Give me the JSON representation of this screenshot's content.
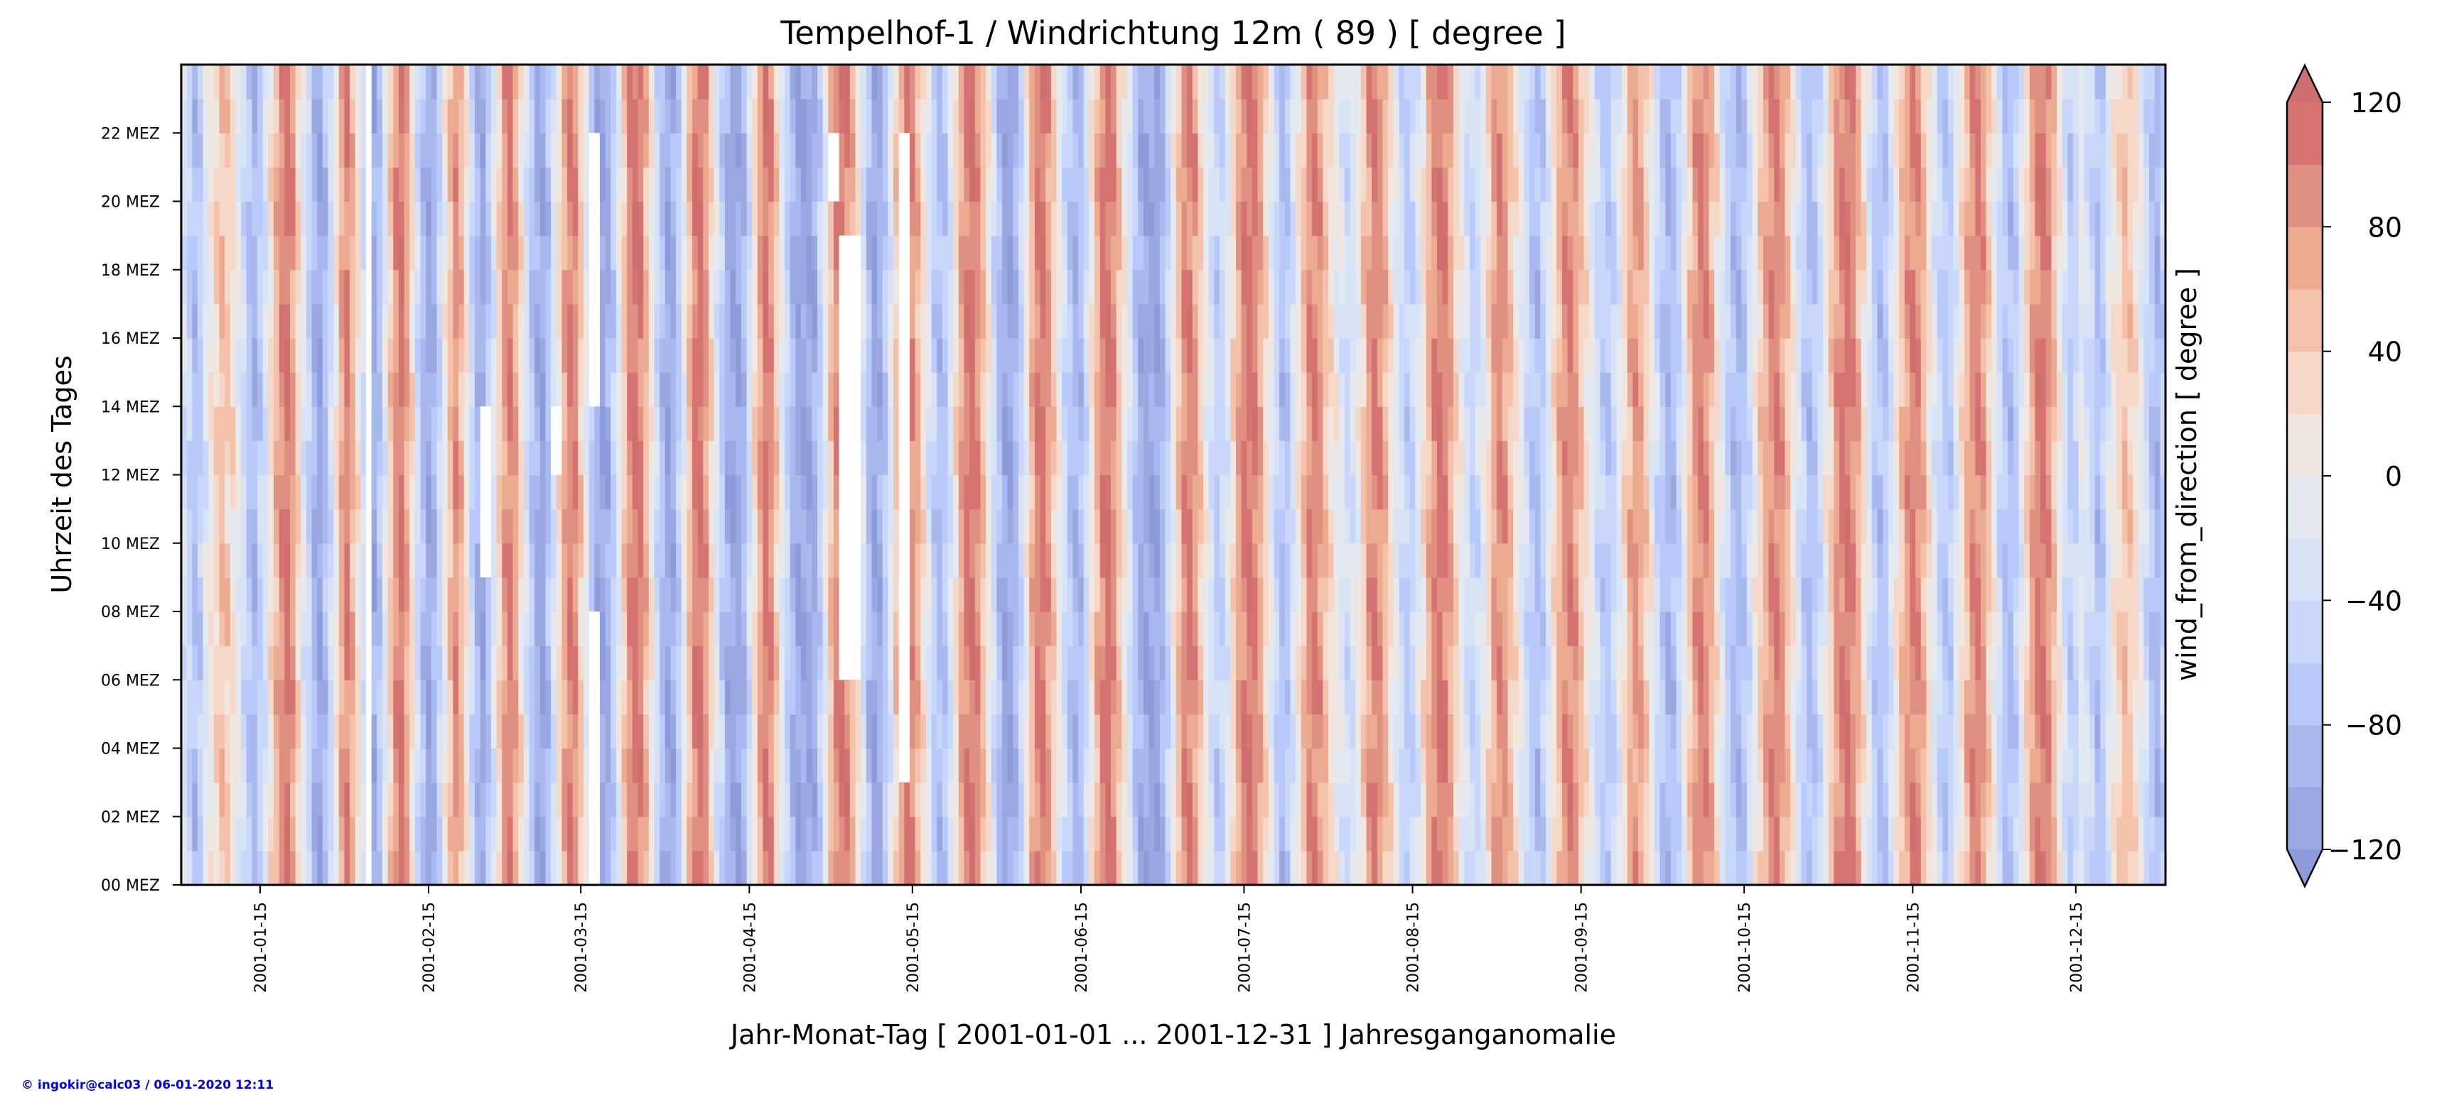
{
  "chart_data": {
    "type": "heatmap",
    "title": "Tempelhof-1 / Windrichtung 12m ( 89 ) [ degree ]",
    "xlabel": "Jahr-Monat-Tag [ 2001-01-01 ... 2001-12-31 ] Jahresganganomalie",
    "ylabel": "Uhrzeit des Tages",
    "colorbar_label": "wind_from_direction [ degree ]",
    "x_range": [
      "2001-01-01",
      "2001-12-31"
    ],
    "x_ticks": [
      "2001-01-15",
      "2001-02-15",
      "2001-03-15",
      "2001-04-15",
      "2001-05-15",
      "2001-06-15",
      "2001-07-15",
      "2001-08-15",
      "2001-09-15",
      "2001-10-15",
      "2001-11-15",
      "2001-12-15"
    ],
    "y_ticks": [
      "00 MEZ",
      "02 MEZ",
      "04 MEZ",
      "06 MEZ",
      "08 MEZ",
      "10 MEZ",
      "12 MEZ",
      "14 MEZ",
      "16 MEZ",
      "18 MEZ",
      "20 MEZ",
      "22 MEZ"
    ],
    "y_range_hours": [
      0,
      24
    ],
    "colorbar_ticks": [
      "−120",
      "−80",
      "−40",
      "0",
      "40",
      "80",
      "120"
    ],
    "colorbar_levels": [
      -120,
      -100,
      -80,
      -60,
      -40,
      -20,
      0,
      20,
      40,
      60,
      80,
      100,
      120
    ],
    "colorbar_extend": "both",
    "colormap": "coolwarm",
    "band_colors": [
      "#9aa7e0",
      "#a9b8ef",
      "#b9c9f9",
      "#c9d7fa",
      "#d8e3f5",
      "#e5eaf1",
      "#f1e7e1",
      "#f6d8c9",
      "#f4c2ab",
      "#ecaa91",
      "#e09080",
      "#d57272"
    ],
    "extend_colors": {
      "under": "#8d9bdb",
      "over": "#cf6e6e"
    },
    "daily_mean_anomaly_degree": [
      -30,
      -50,
      -80,
      -60,
      -20,
      10,
      30,
      50,
      40,
      20,
      -10,
      -40,
      -70,
      -90,
      -60,
      -30,
      20,
      60,
      90,
      110,
      80,
      30,
      -20,
      -50,
      -90,
      -110,
      -80,
      -40,
      10,
      70,
      100,
      60,
      20,
      -30,
      -60,
      -100,
      -70,
      -20,
      40,
      90,
      110,
      70,
      20,
      -40,
      -80,
      -110,
      -90,
      -50,
      0,
      50,
      90,
      60,
      10,
      -50,
      -90,
      -110,
      -70,
      -20,
      30,
      80,
      100,
      70,
      20,
      -30,
      -70,
      -100,
      -110,
      -80,
      -30,
      20,
      70,
      100,
      90,
      40,
      -10,
      -60,
      -100,
      -110,
      -100,
      -60,
      -10,
      40,
      90,
      110,
      100,
      60,
      10,
      -40,
      -80,
      -110,
      -100,
      -60,
      -10,
      50,
      100,
      110,
      80,
      30,
      -20,
      -60,
      -100,
      -110,
      -110,
      -90,
      -40,
      20,
      70,
      110,
      90,
      40,
      -10,
      -50,
      -90,
      -110,
      -110,
      -110,
      -100,
      -60,
      -10,
      50,
      90,
      110,
      100,
      60,
      20,
      -30,
      -80,
      -110,
      -100,
      -70,
      -20,
      40,
      80,
      100,
      90,
      60,
      20,
      -20,
      -60,
      -80,
      -70,
      -30,
      20,
      70,
      100,
      110,
      90,
      50,
      10,
      -40,
      -80,
      -110,
      -110,
      -90,
      -50,
      0,
      60,
      100,
      110,
      80,
      40,
      0,
      -40,
      -70,
      -90,
      -80,
      -40,
      10,
      60,
      100,
      110,
      90,
      50,
      10,
      -30,
      -70,
      -100,
      -110,
      -110,
      -110,
      -90,
      -50,
      0,
      50,
      90,
      100,
      80,
      40,
      0,
      -30,
      -60,
      -50,
      -20,
      30,
      70,
      100,
      110,
      100,
      70,
      30,
      -10,
      -50,
      -80,
      -70,
      -30,
      10,
      50,
      90,
      100,
      80,
      50,
      20,
      0,
      -20,
      -40,
      -30,
      0,
      40,
      80,
      100,
      90,
      60,
      20,
      -10,
      -40,
      -60,
      -50,
      -20,
      20,
      60,
      90,
      110,
      100,
      70,
      30,
      0,
      -30,
      -50,
      -40,
      -10,
      30,
      70,
      90,
      80,
      50,
      20,
      -10,
      -40,
      -70,
      -80,
      -60,
      -20,
      20,
      60,
      90,
      100,
      80,
      50,
      20,
      -10,
      -40,
      -60,
      -70,
      -50,
      -20,
      20,
      60,
      80,
      70,
      40,
      0,
      -40,
      -70,
      -90,
      -80,
      -50,
      -10,
      40,
      80,
      100,
      90,
      60,
      20,
      -20,
      -50,
      -80,
      -90,
      -70,
      -40,
      0,
      40,
      70,
      90,
      100,
      80,
      50,
      10,
      -30,
      -60,
      -80,
      -70,
      -40,
      0,
      40,
      80,
      100,
      110,
      90,
      60,
      20,
      -20,
      -60,
      -80,
      -70,
      -30,
      10,
      50,
      80,
      100,
      90,
      60,
      20,
      -20,
      -50,
      -70,
      -60,
      -20,
      20,
      60,
      90,
      100,
      80,
      40,
      0,
      -40,
      -70,
      -80,
      -60,
      -20,
      30,
      70,
      100,
      110,
      90,
      50,
      10,
      -30,
      -60,
      -50,
      -10
    ],
    "missing_data": [
      {
        "start": "2001-02-04",
        "end": "2001-02-04",
        "hours": [
          0,
          24
        ]
      },
      {
        "start": "2001-02-25",
        "end": "2001-02-26",
        "hours": [
          9,
          14
        ]
      },
      {
        "start": "2001-03-10",
        "end": "2001-03-11",
        "hours": [
          12,
          14
        ]
      },
      {
        "start": "2001-03-17",
        "end": "2001-03-18",
        "hours": [
          0,
          8
        ]
      },
      {
        "start": "2001-03-17",
        "end": "2001-03-18",
        "hours": [
          14,
          22
        ]
      },
      {
        "start": "2001-04-30",
        "end": "2001-05-01",
        "hours": [
          20,
          22
        ]
      },
      {
        "start": "2001-05-02",
        "end": "2001-05-05",
        "hours": [
          6,
          19
        ]
      },
      {
        "start": "2001-05-13",
        "end": "2001-05-14",
        "hours": [
          3,
          22
        ]
      }
    ]
  },
  "footer": {
    "credit": "© ingokir@calc03 / 06-01-2020 12:11"
  }
}
